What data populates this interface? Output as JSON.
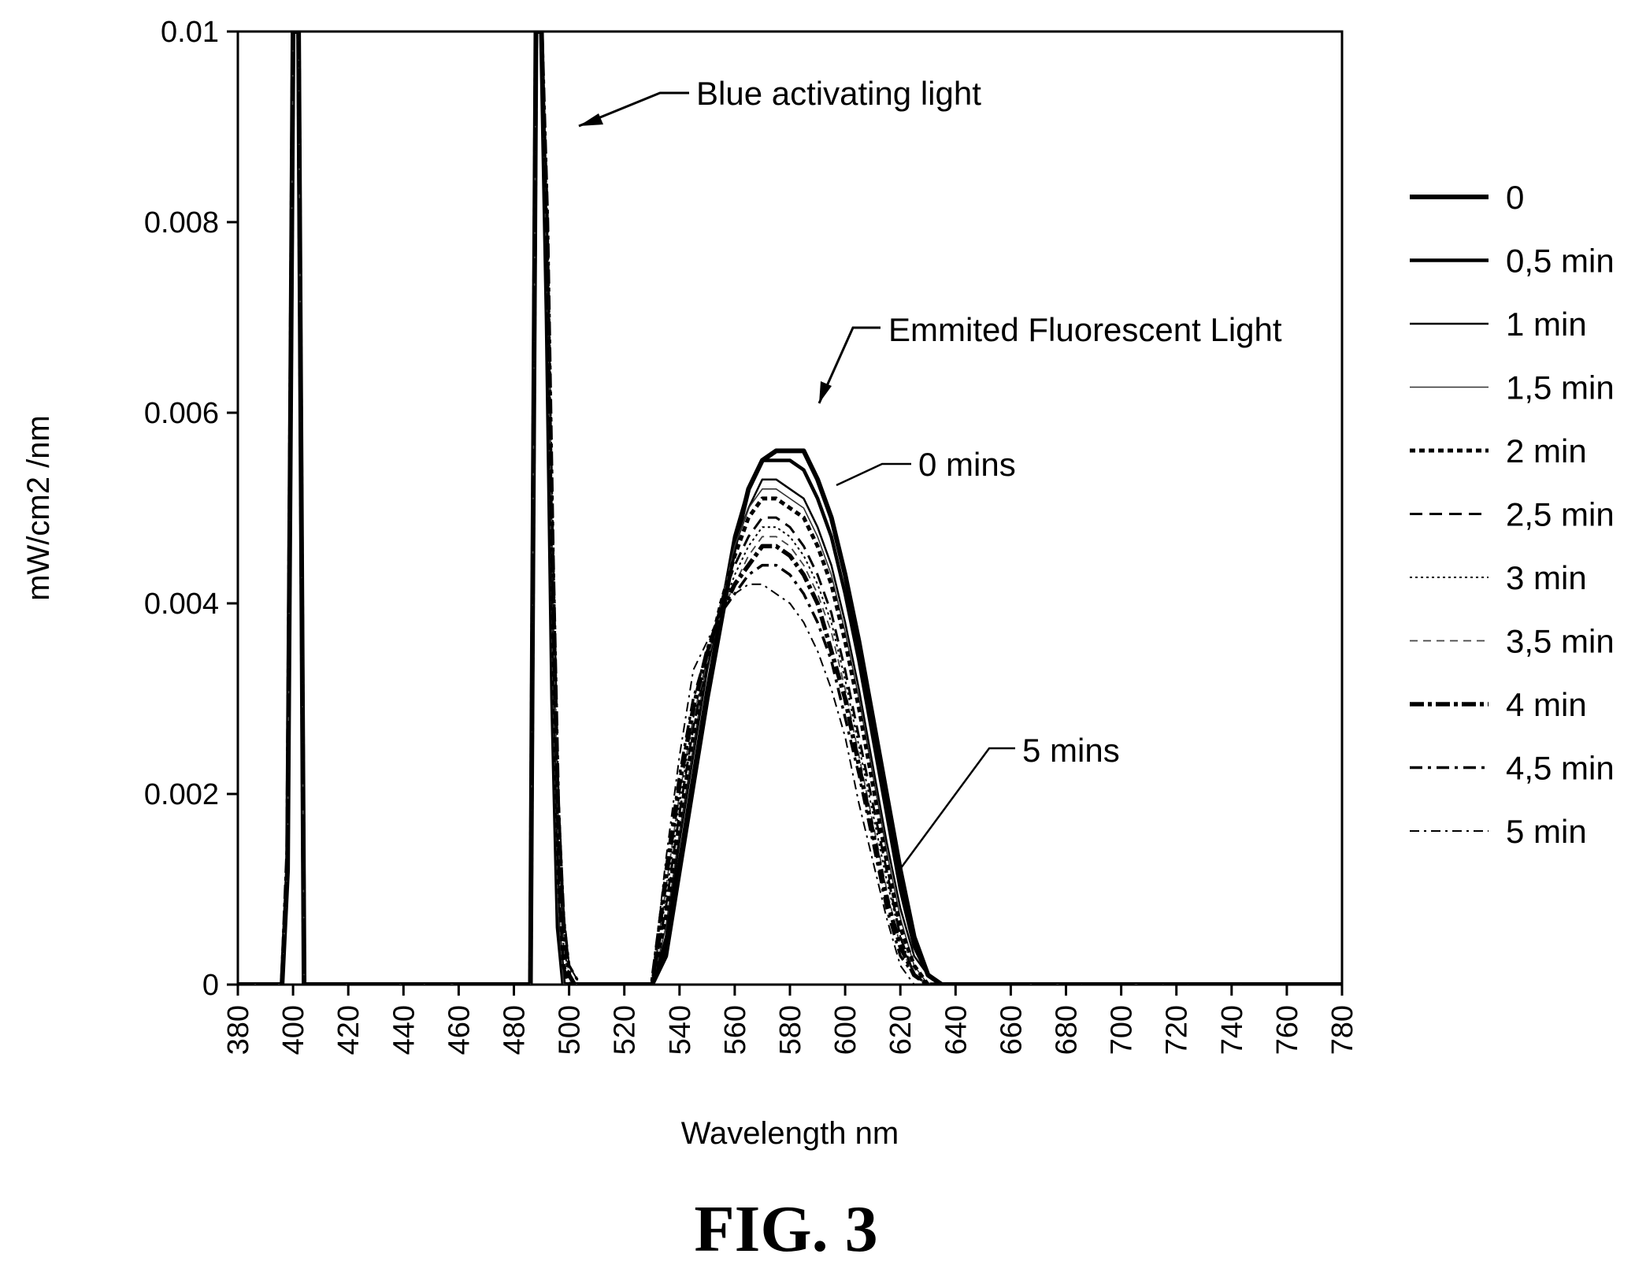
{
  "chart_data": {
    "type": "line",
    "title": "",
    "xlabel": "Wavelength nm",
    "ylabel": "mW/cm2  /nm",
    "xlim": [
      380,
      780
    ],
    "ylim": [
      0,
      0.01
    ],
    "x_ticks": [
      "380",
      "400",
      "420",
      "440",
      "460",
      "480",
      "500",
      "520",
      "540",
      "560",
      "580",
      "600",
      "620",
      "640",
      "660",
      "680",
      "700",
      "720",
      "740",
      "760",
      "780"
    ],
    "y_ticks": [
      "0",
      "0.002",
      "0.004",
      "0.006",
      "0.008",
      "0.01"
    ],
    "grid": false,
    "legend_position": "right",
    "annotations": {
      "blue": "Blue activating light",
      "emitted": "Emmited Fluorescent Light",
      "zero": "0 mins",
      "five": "5 mins"
    },
    "figure_caption": "FIG. 3",
    "series": [
      {
        "name": "0",
        "style": "thick-solid",
        "x": [
          380,
          396,
          398,
          400,
          402,
          404,
          486,
          488,
          490,
          492,
          494,
          496,
          498,
          520,
          530,
          535,
          540,
          545,
          550,
          555,
          560,
          565,
          570,
          575,
          580,
          585,
          590,
          595,
          600,
          605,
          610,
          615,
          620,
          625,
          630,
          635,
          640,
          780
        ],
        "y": [
          0,
          0,
          0.0012,
          0.01,
          0.01,
          0,
          0,
          0.01,
          0.01,
          0.007,
          0.003,
          0.0006,
          0,
          0,
          0,
          0.0003,
          0.0012,
          0.0021,
          0.003,
          0.0038,
          0.0046,
          0.0052,
          0.0055,
          0.0056,
          0.0056,
          0.0056,
          0.0053,
          0.0049,
          0.0043,
          0.0036,
          0.0028,
          0.002,
          0.0012,
          0.0005,
          0.0001,
          0,
          0,
          0
        ]
      },
      {
        "name": "0,5 min",
        "style": "medium-solid",
        "x": [
          380,
          396,
          398,
          400,
          402,
          404,
          486,
          488,
          490,
          492,
          494,
          496,
          498,
          520,
          530,
          535,
          540,
          545,
          550,
          555,
          560,
          565,
          570,
          575,
          580,
          585,
          590,
          595,
          600,
          605,
          610,
          615,
          620,
          625,
          630,
          635,
          640,
          780
        ],
        "y": [
          0,
          0,
          0.0012,
          0.01,
          0.01,
          0,
          0,
          0.01,
          0.01,
          0.007,
          0.003,
          0.0006,
          0,
          0,
          0,
          0.0004,
          0.0013,
          0.0022,
          0.0031,
          0.0039,
          0.0047,
          0.0052,
          0.0055,
          0.0055,
          0.0055,
          0.0054,
          0.0051,
          0.0047,
          0.0041,
          0.0034,
          0.0026,
          0.0018,
          0.001,
          0.0004,
          0.0001,
          0,
          0,
          0
        ]
      },
      {
        "name": "1 min",
        "style": "thin-solid",
        "x": [
          380,
          396,
          398,
          400,
          402,
          404,
          486,
          488,
          490,
          492,
          494,
          496,
          498,
          520,
          530,
          535,
          540,
          545,
          550,
          555,
          560,
          565,
          570,
          575,
          580,
          585,
          590,
          595,
          600,
          605,
          610,
          615,
          620,
          625,
          630,
          635,
          640,
          780
        ],
        "y": [
          0,
          0,
          0.0012,
          0.01,
          0.01,
          0,
          0,
          0.01,
          0.01,
          0.0072,
          0.0032,
          0.0007,
          0,
          0,
          0,
          0.0005,
          0.0015,
          0.0024,
          0.0033,
          0.004,
          0.0046,
          0.005,
          0.0053,
          0.0053,
          0.0052,
          0.0051,
          0.0048,
          0.0044,
          0.0038,
          0.0031,
          0.0023,
          0.0015,
          0.0008,
          0.0003,
          0.0001,
          0,
          0,
          0
        ]
      },
      {
        "name": "1,5 min",
        "style": "hair-solid",
        "x": [
          380,
          396,
          398,
          400,
          402,
          404,
          486,
          488,
          490,
          492,
          494,
          496,
          498,
          520,
          530,
          535,
          540,
          545,
          550,
          555,
          560,
          565,
          570,
          575,
          580,
          585,
          590,
          595,
          600,
          605,
          610,
          615,
          620,
          625,
          630,
          635,
          640,
          780
        ],
        "y": [
          0,
          0,
          0.0012,
          0.01,
          0.01,
          0,
          0,
          0.01,
          0.01,
          0.0072,
          0.0033,
          0.0008,
          0,
          0,
          0,
          0.0006,
          0.0016,
          0.0025,
          0.0034,
          0.004,
          0.0046,
          0.005,
          0.0052,
          0.0052,
          0.0051,
          0.005,
          0.0047,
          0.0043,
          0.0037,
          0.003,
          0.0022,
          0.0014,
          0.0007,
          0.0002,
          0,
          0,
          0,
          0
        ]
      },
      {
        "name": "2 min",
        "style": "thick-dotted",
        "x": [
          380,
          396,
          398,
          400,
          402,
          404,
          486,
          488,
          490,
          492,
          494,
          496,
          498,
          500,
          520,
          530,
          535,
          540,
          545,
          550,
          555,
          560,
          565,
          570,
          575,
          580,
          585,
          590,
          595,
          600,
          605,
          610,
          615,
          620,
          625,
          630,
          635,
          640,
          780
        ],
        "y": [
          0,
          0,
          0.0013,
          0.01,
          0.01,
          0,
          0,
          0.01,
          0.01,
          0.0075,
          0.0038,
          0.0012,
          0.0002,
          0,
          0,
          0,
          0.0007,
          0.0017,
          0.0026,
          0.0034,
          0.004,
          0.0045,
          0.0049,
          0.0051,
          0.0051,
          0.005,
          0.0049,
          0.0046,
          0.0042,
          0.0036,
          0.0029,
          0.0021,
          0.0013,
          0.0006,
          0.0002,
          0,
          0,
          0,
          0
        ]
      },
      {
        "name": "2,5 min",
        "style": "dashed",
        "x": [
          380,
          396,
          398,
          400,
          402,
          404,
          486,
          488,
          490,
          492,
          494,
          496,
          498,
          500,
          520,
          530,
          535,
          540,
          545,
          550,
          555,
          560,
          565,
          570,
          575,
          580,
          585,
          590,
          595,
          600,
          605,
          610,
          615,
          620,
          625,
          630,
          635,
          640,
          780
        ],
        "y": [
          0,
          0,
          0.0013,
          0.01,
          0.01,
          0,
          0,
          0.01,
          0.01,
          0.0075,
          0.0039,
          0.0013,
          0.0002,
          0,
          0,
          0,
          0.0008,
          0.0018,
          0.0027,
          0.0034,
          0.004,
          0.0044,
          0.0047,
          0.0049,
          0.0049,
          0.0048,
          0.0046,
          0.0043,
          0.0039,
          0.0033,
          0.0026,
          0.0019,
          0.0012,
          0.0005,
          0.0001,
          0,
          0,
          0,
          0
        ]
      },
      {
        "name": "3 min",
        "style": "thin-dotted",
        "x": [
          380,
          396,
          398,
          400,
          402,
          404,
          486,
          488,
          490,
          492,
          494,
          496,
          498,
          500,
          502,
          520,
          530,
          535,
          540,
          545,
          550,
          555,
          560,
          565,
          570,
          575,
          580,
          585,
          590,
          595,
          600,
          605,
          610,
          615,
          620,
          625,
          630,
          635,
          640,
          780
        ],
        "y": [
          0,
          0,
          0.0013,
          0.01,
          0.01,
          0,
          0,
          0.01,
          0.01,
          0.0078,
          0.0042,
          0.0015,
          0.0004,
          0.0001,
          0,
          0,
          0,
          0.0009,
          0.0019,
          0.0028,
          0.0034,
          0.0039,
          0.0043,
          0.0046,
          0.0048,
          0.0048,
          0.0047,
          0.0045,
          0.0042,
          0.0038,
          0.0032,
          0.0025,
          0.0018,
          0.0011,
          0.0005,
          0.0001,
          0,
          0,
          0,
          0
        ]
      },
      {
        "name": "3,5 min",
        "style": "thin-dashed",
        "x": [
          380,
          396,
          398,
          400,
          402,
          404,
          486,
          488,
          490,
          492,
          494,
          496,
          498,
          500,
          502,
          520,
          530,
          535,
          540,
          545,
          550,
          555,
          560,
          565,
          570,
          575,
          580,
          585,
          590,
          595,
          600,
          605,
          610,
          615,
          620,
          625,
          630,
          635,
          640,
          780
        ],
        "y": [
          0,
          0,
          0.0013,
          0.01,
          0.01,
          0,
          0,
          0.01,
          0.01,
          0.0078,
          0.0043,
          0.0016,
          0.0005,
          0.0001,
          0,
          0,
          0,
          0.001,
          0.002,
          0.0028,
          0.0034,
          0.0039,
          0.0042,
          0.0045,
          0.0047,
          0.0047,
          0.0046,
          0.0044,
          0.0041,
          0.0037,
          0.0031,
          0.0024,
          0.0017,
          0.001,
          0.0004,
          0.0001,
          0,
          0,
          0,
          0
        ]
      },
      {
        "name": "4 min",
        "style": "thick-dashdot",
        "x": [
          380,
          396,
          398,
          400,
          402,
          404,
          486,
          488,
          490,
          492,
          494,
          496,
          498,
          500,
          502,
          520,
          530,
          535,
          540,
          545,
          550,
          555,
          560,
          565,
          570,
          575,
          580,
          585,
          590,
          595,
          600,
          605,
          610,
          615,
          620,
          625,
          630,
          635,
          640,
          780
        ],
        "y": [
          0,
          0,
          0.0014,
          0.01,
          0.01,
          0,
          0,
          0.01,
          0.01,
          0.008,
          0.0045,
          0.0018,
          0.0006,
          0.0001,
          0,
          0,
          0,
          0.0011,
          0.0021,
          0.0029,
          0.0035,
          0.0039,
          0.0042,
          0.0044,
          0.0046,
          0.0046,
          0.0045,
          0.0043,
          0.004,
          0.0035,
          0.003,
          0.0023,
          0.0016,
          0.0009,
          0.0004,
          0.0001,
          0,
          0,
          0,
          0
        ]
      },
      {
        "name": "4,5 min",
        "style": "dashdot",
        "x": [
          380,
          396,
          398,
          400,
          402,
          404,
          486,
          488,
          490,
          492,
          494,
          496,
          498,
          500,
          502,
          504,
          520,
          530,
          535,
          540,
          545,
          550,
          555,
          560,
          565,
          570,
          575,
          580,
          585,
          590,
          595,
          600,
          605,
          610,
          615,
          620,
          625,
          630,
          635,
          640,
          780
        ],
        "y": [
          0,
          0,
          0.0014,
          0.01,
          0.01,
          0,
          0,
          0.01,
          0.01,
          0.0082,
          0.0048,
          0.002,
          0.0007,
          0.0002,
          0.0001,
          0,
          0,
          0,
          0.0012,
          0.0022,
          0.003,
          0.0035,
          0.0039,
          0.0041,
          0.0043,
          0.0044,
          0.0044,
          0.0043,
          0.0041,
          0.0038,
          0.0034,
          0.0028,
          0.0022,
          0.0015,
          0.0008,
          0.0003,
          0.0001,
          0,
          0,
          0,
          0
        ]
      },
      {
        "name": "5 min",
        "style": "thin-dashdot",
        "x": [
          380,
          396,
          398,
          400,
          402,
          404,
          486,
          488,
          490,
          492,
          494,
          496,
          498,
          500,
          502,
          504,
          520,
          530,
          535,
          540,
          545,
          550,
          555,
          560,
          565,
          570,
          575,
          580,
          585,
          590,
          595,
          600,
          605,
          610,
          615,
          620,
          625,
          630,
          635,
          640,
          780
        ],
        "y": [
          0,
          0,
          0.0014,
          0.01,
          0.01,
          0,
          0,
          0.01,
          0.01,
          0.0082,
          0.005,
          0.0022,
          0.0008,
          0.0002,
          0.0001,
          0,
          0,
          0,
          0.0013,
          0.0024,
          0.0033,
          0.0036,
          0.0039,
          0.0041,
          0.0042,
          0.0042,
          0.0041,
          0.004,
          0.0038,
          0.0035,
          0.0031,
          0.0026,
          0.0019,
          0.0013,
          0.0007,
          0.0002,
          0,
          0,
          0,
          0,
          0
        ]
      }
    ]
  }
}
